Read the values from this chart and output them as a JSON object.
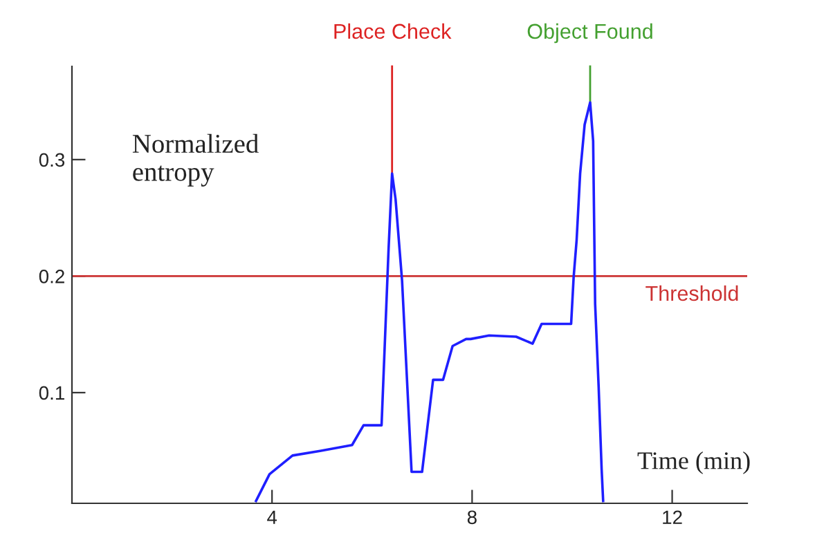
{
  "chart_data": {
    "type": "line",
    "xlabel": "Time (min)",
    "ylabel": "Normalized\nentropy",
    "xlim": [
      0,
      13.5
    ],
    "ylim": [
      0.005,
      0.38
    ],
    "xticks": [
      4,
      8,
      12
    ],
    "yticks": [
      0.1,
      0.2,
      0.3
    ],
    "grid": false,
    "legend": false,
    "marker": "none",
    "line_style": "solid",
    "series": [
      {
        "color": "#1f1fff",
        "x": [
          3.68,
          3.95,
          4.41,
          4.96,
          5.6,
          5.83,
          6.19,
          6.33,
          6.4,
          6.47,
          6.6,
          6.79,
          7.0,
          7.22,
          7.42,
          7.61,
          7.88,
          7.97,
          8.34,
          8.88,
          9.21,
          9.39,
          9.98,
          10.03,
          10.09,
          10.16,
          10.25,
          10.36,
          10.42,
          10.46,
          10.53,
          10.59,
          10.62
        ],
        "values": [
          0.007,
          0.03,
          0.046,
          0.05,
          0.055,
          0.072,
          0.072,
          0.223,
          0.288,
          0.266,
          0.196,
          0.032,
          0.032,
          0.111,
          0.111,
          0.14,
          0.146,
          0.146,
          0.149,
          0.148,
          0.142,
          0.159,
          0.159,
          0.199,
          0.231,
          0.288,
          0.33,
          0.349,
          0.316,
          0.176,
          0.105,
          0.034,
          0.007
        ]
      }
    ],
    "ref_lines": [
      {
        "axis": "y",
        "value": 0.2,
        "label": "Threshold",
        "color": "#cc3333"
      },
      {
        "axis": "x",
        "value": 6.4,
        "label": "Place Check",
        "color": "#dd2222"
      },
      {
        "axis": "x",
        "value": 10.36,
        "label": "Object Found",
        "color": "#44a030"
      }
    ]
  }
}
